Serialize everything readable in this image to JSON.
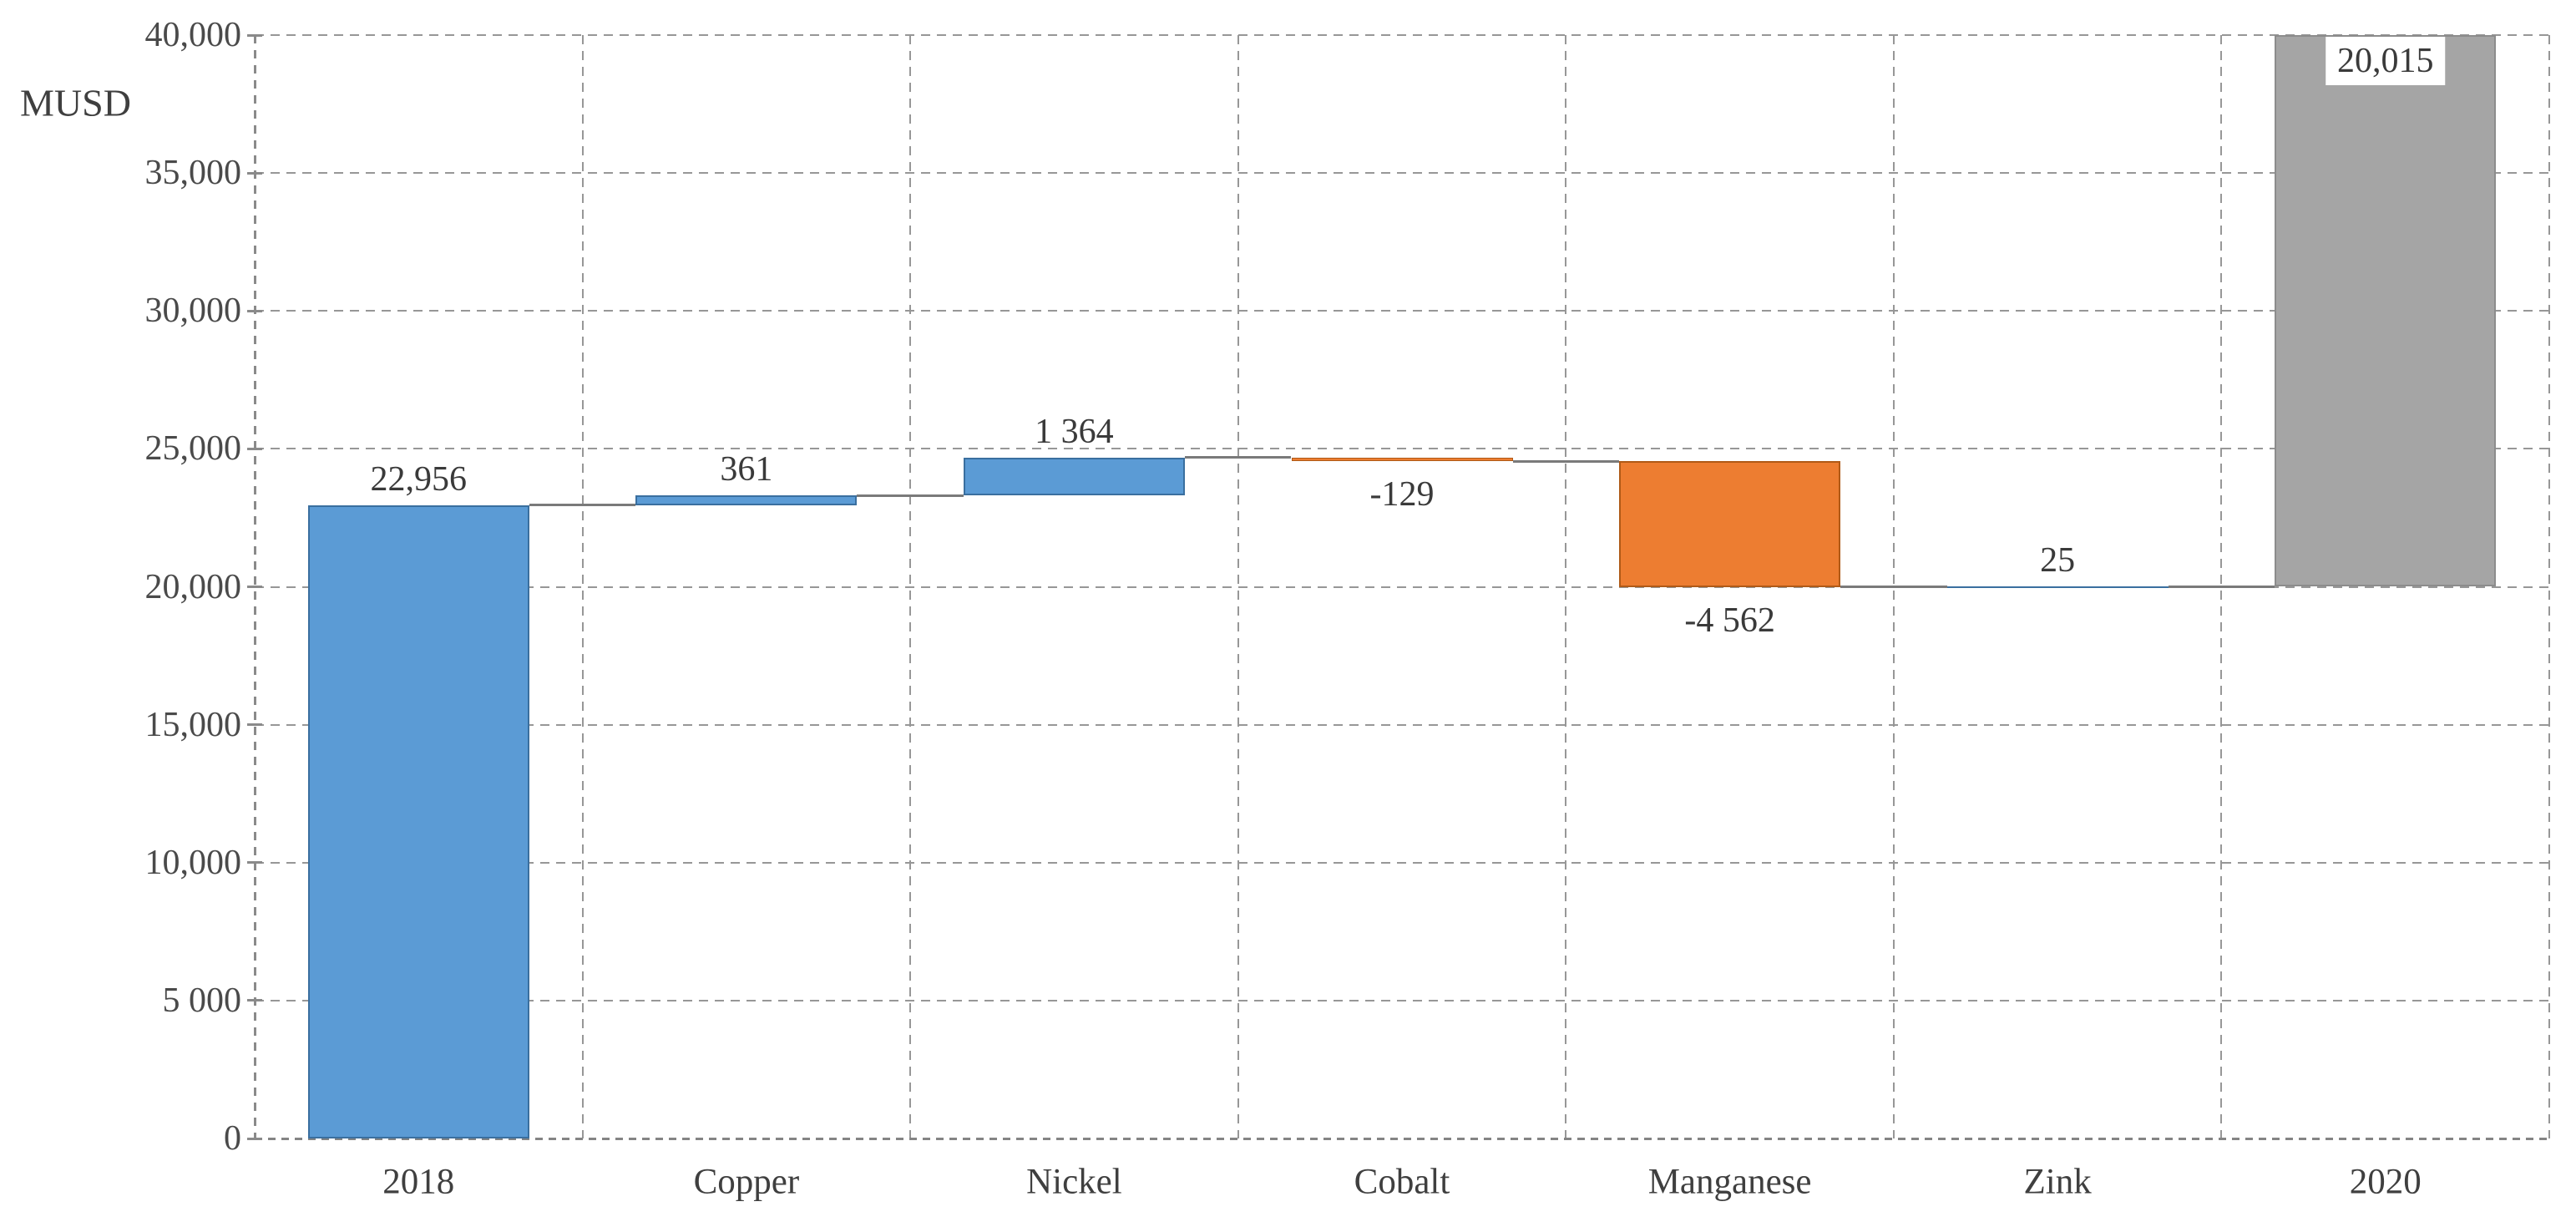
{
  "chart_data": {
    "type": "bar",
    "subtype": "waterfall",
    "title": "",
    "xlabel": "",
    "ylabel": "MUSD",
    "categories": [
      "2018",
      "Copper",
      "Nickel",
      "Cobalt",
      "Manganese",
      "Zink",
      "2020"
    ],
    "values": [
      22956,
      361,
      1364,
      -129,
      -4562,
      25,
      20015
    ],
    "value_labels": [
      "22,956",
      "361",
      "1 364",
      "-129",
      "-4 562",
      "25",
      "20,015"
    ],
    "bar_kinds": [
      "start",
      "increase",
      "increase",
      "decrease",
      "decrease",
      "increase",
      "end"
    ],
    "running_totals": [
      22956,
      23317,
      24681,
      24552,
      19990,
      20015,
      20015
    ],
    "ylim": [
      0,
      40000
    ],
    "ytick_values": [
      0,
      5000,
      10000,
      15000,
      20000,
      25000,
      30000,
      35000,
      40000
    ],
    "ytick_labels": [
      "0",
      "5 000",
      "10,000",
      "15,000",
      "20,000",
      "25,000",
      "30,000",
      "35,000",
      "40,000"
    ],
    "grid": "dashed horizontal and vertical gridlines, dashed axes",
    "legend": "none",
    "colors": {
      "increase": "#5B9BD5",
      "decrease": "#ED7D31",
      "total": "#A5A5A5",
      "connector": "#7A7A7A",
      "gridline": "#979797",
      "text": "#3F3F3F"
    },
    "bar_colors": [
      "#5B9BD5",
      "#5B9BD5",
      "#5B9BD5",
      "#ED7D31",
      "#ED7D31",
      "#5B9BD5",
      "#A5A5A5"
    ],
    "render_note": "final 2020 bar is drawn from the 20,015 running-total level up to the 40,000 top gridline (visually clipped), with its value label inside a white box at the top of the bar; labels for decreases sit below the bars"
  }
}
